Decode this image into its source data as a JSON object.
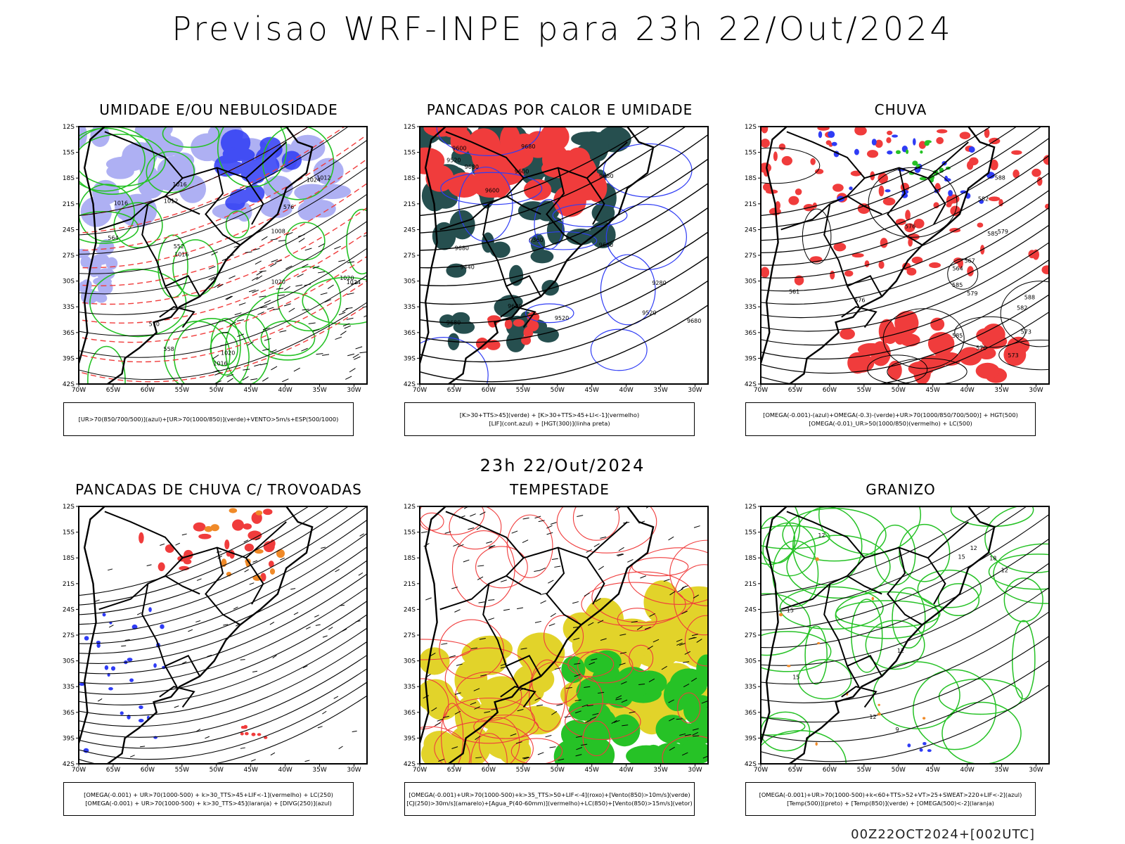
{
  "header": {
    "title": "Previsao WRF-INPE  para 23h 22/Out/2024"
  },
  "mid_title": "23h 22/Out/2024",
  "footer": "00Z22OCT2024+[002UTC]",
  "axes": {
    "lat_labels": [
      "12S",
      "15S",
      "18S",
      "21S",
      "24S",
      "27S",
      "30S",
      "33S",
      "36S",
      "39S",
      "42S"
    ],
    "lon_labels": [
      "70W",
      "65W",
      "60W",
      "55W",
      "50W",
      "45W",
      "40W",
      "35W",
      "30W"
    ]
  },
  "colors": {
    "blue": "#2f3cf5",
    "green": "#26c226",
    "red": "#f03c3c",
    "yellow": "#e2d32a",
    "orange": "#f08a28",
    "teal": "#264f4f",
    "lavender": "#a6a8f2"
  },
  "panels": [
    {
      "title": "UMIDADE E/OU NEBULOSIDADE",
      "legend": [
        "[UR>70(850/700/500)](azul)+[UR>70(1000/850)](verde)+VENTO>5m/s+ESP(500/1000)"
      ],
      "labels": [
        "1016",
        "1012",
        "1008",
        "1020",
        "1024",
        "1016",
        "1020",
        "1016",
        "1012",
        "1024",
        "1020",
        "1016",
        "576",
        "570",
        "564",
        "558",
        "552"
      ]
    },
    {
      "title": "PANCADAS POR CALOR E UMIDADE",
      "legend": [
        "[K>30+TTS>45](verde) + [K>30+TTS>45+LI<-1](vermelho)",
        "[LIF](cont.azul) + [HGT(300)](linha preta)"
      ],
      "labels": [
        "9680",
        "9680",
        "9680",
        "9680",
        "9680",
        "9600",
        "9680",
        "9680",
        "9680",
        "9600",
        "9520",
        "9520",
        "9440",
        "9360",
        "9280",
        "9600",
        "9520"
      ]
    },
    {
      "title": "CHUVA",
      "legend": [
        "[OMEGA(-0.001)-(azul)+OMEGA(-0.3)-(verde)+UR>70(1000/850/700/500)] + HGT(500)",
        "[OMEGA(-0.01)_UR>50(1000/850)(vermelho) + LC(500)"
      ],
      "labels": [
        "585",
        "588",
        "585",
        "582",
        "585",
        "582",
        "579",
        "576",
        "573",
        "570",
        "567",
        "564",
        "561",
        "579",
        "576",
        "573",
        "588"
      ]
    },
    {
      "title": "PANCADAS DE CHUVA C/ TROVOADAS",
      "legend": [
        "[OMEGA(-0.001) + UR>70(1000-500) + k>30_TTS>45+LIF<-1](vermelho) + LC(250)",
        "[OMEGA(-0.001) + UR>70(1000-500) + k>30_TTS>45](laranja) + [DIVG(250)](azul)"
      ],
      "labels": []
    },
    {
      "title": "TEMPESTADE",
      "legend": [
        "[OMEGA(-0.001)+UR>70(1000-500)+k>35_TTS>50+LIF<-4](roxo)+[Vento(850)>10m/s](verde)",
        "[CJ(250)>30m/s](amarelo)+[Agua_P(40-60mm)](vermelho)+LC(850)+[Vento(850)>15m/s](vetor)"
      ],
      "labels": []
    },
    {
      "title": "GRANIZO",
      "legend": [
        "[OMEGA(-0.001)+UR>70(1000-500)+k<60+TTS>52+VT>25+SWEAT>220+LIF<-2](azul)",
        "[Temp(500)](preto) + [Temp(850)](verde) + [OMEGA(500)<-2](laranja)"
      ],
      "labels": [
        "12",
        "12",
        "15",
        "12",
        "9",
        "12",
        "15",
        "12",
        "15",
        "18"
      ]
    }
  ]
}
